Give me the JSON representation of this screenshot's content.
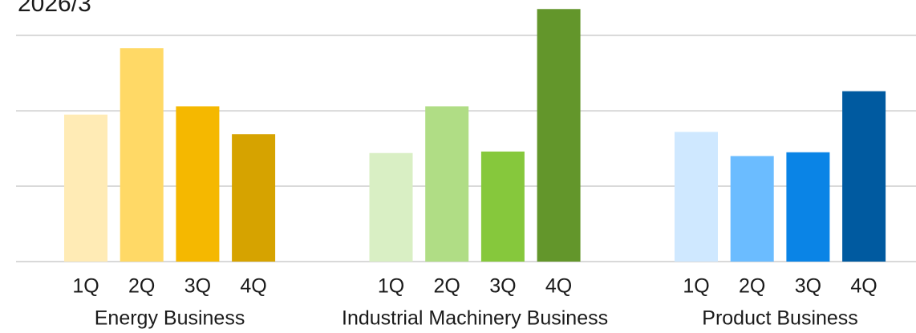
{
  "chart_data": {
    "type": "bar",
    "title": "2026/3",
    "ylim": [
      0,
      3.47
    ],
    "yticks": [
      0,
      1,
      2,
      3
    ],
    "grid": true,
    "groups": [
      {
        "name": "Energy Business",
        "categories": [
          "1Q",
          "2Q",
          "3Q",
          "4Q"
        ],
        "values": [
          1.95,
          2.83,
          2.06,
          1.69
        ],
        "colors": [
          "#ffebb5",
          "#ffd966",
          "#f5b800",
          "#d6a300"
        ]
      },
      {
        "name": "Industrial Machinery Business",
        "categories": [
          "1Q",
          "2Q",
          "3Q",
          "4Q"
        ],
        "values": [
          1.44,
          2.06,
          1.46,
          3.35
        ],
        "colors": [
          "#d9efc4",
          "#b0dd85",
          "#86c83c",
          "#63962b"
        ]
      },
      {
        "name": "Product Business",
        "categories": [
          "1Q",
          "2Q",
          "3Q",
          "4Q"
        ],
        "values": [
          1.72,
          1.4,
          1.45,
          2.26
        ],
        "colors": [
          "#cfe8ff",
          "#6bbcff",
          "#0a84e6",
          "#005aa0"
        ]
      }
    ]
  }
}
